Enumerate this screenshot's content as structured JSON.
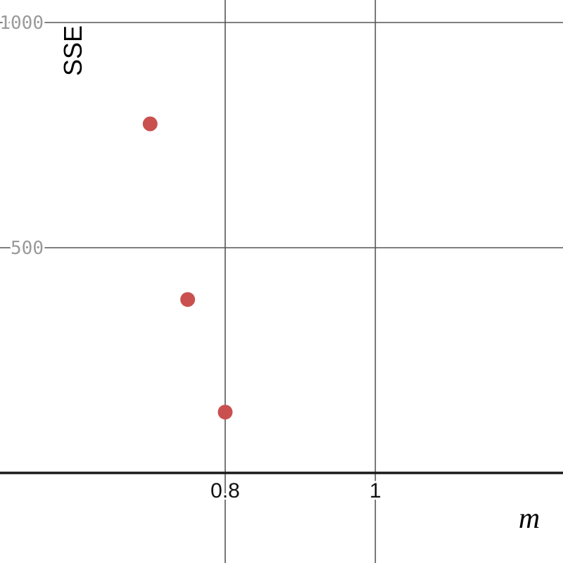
{
  "chart_data": {
    "type": "scatter",
    "xlabel": "m",
    "ylabel": "SSE",
    "xlim": [
      0.5,
      1.25
    ],
    "ylim": [
      -200,
      1050
    ],
    "x_ticks": [
      {
        "value": 0.8,
        "label": "0.8"
      },
      {
        "value": 1,
        "label": "1"
      }
    ],
    "y_ticks": [
      {
        "value": 500,
        "label": "500"
      },
      {
        "value": 1000,
        "label": "1000"
      }
    ],
    "grid": true,
    "series": [
      {
        "color": "#c9504f",
        "points": [
          {
            "x": 0.7,
            "y": 775
          },
          {
            "x": 0.75,
            "y": 385
          },
          {
            "x": 0.8,
            "y": 135
          }
        ]
      }
    ]
  }
}
